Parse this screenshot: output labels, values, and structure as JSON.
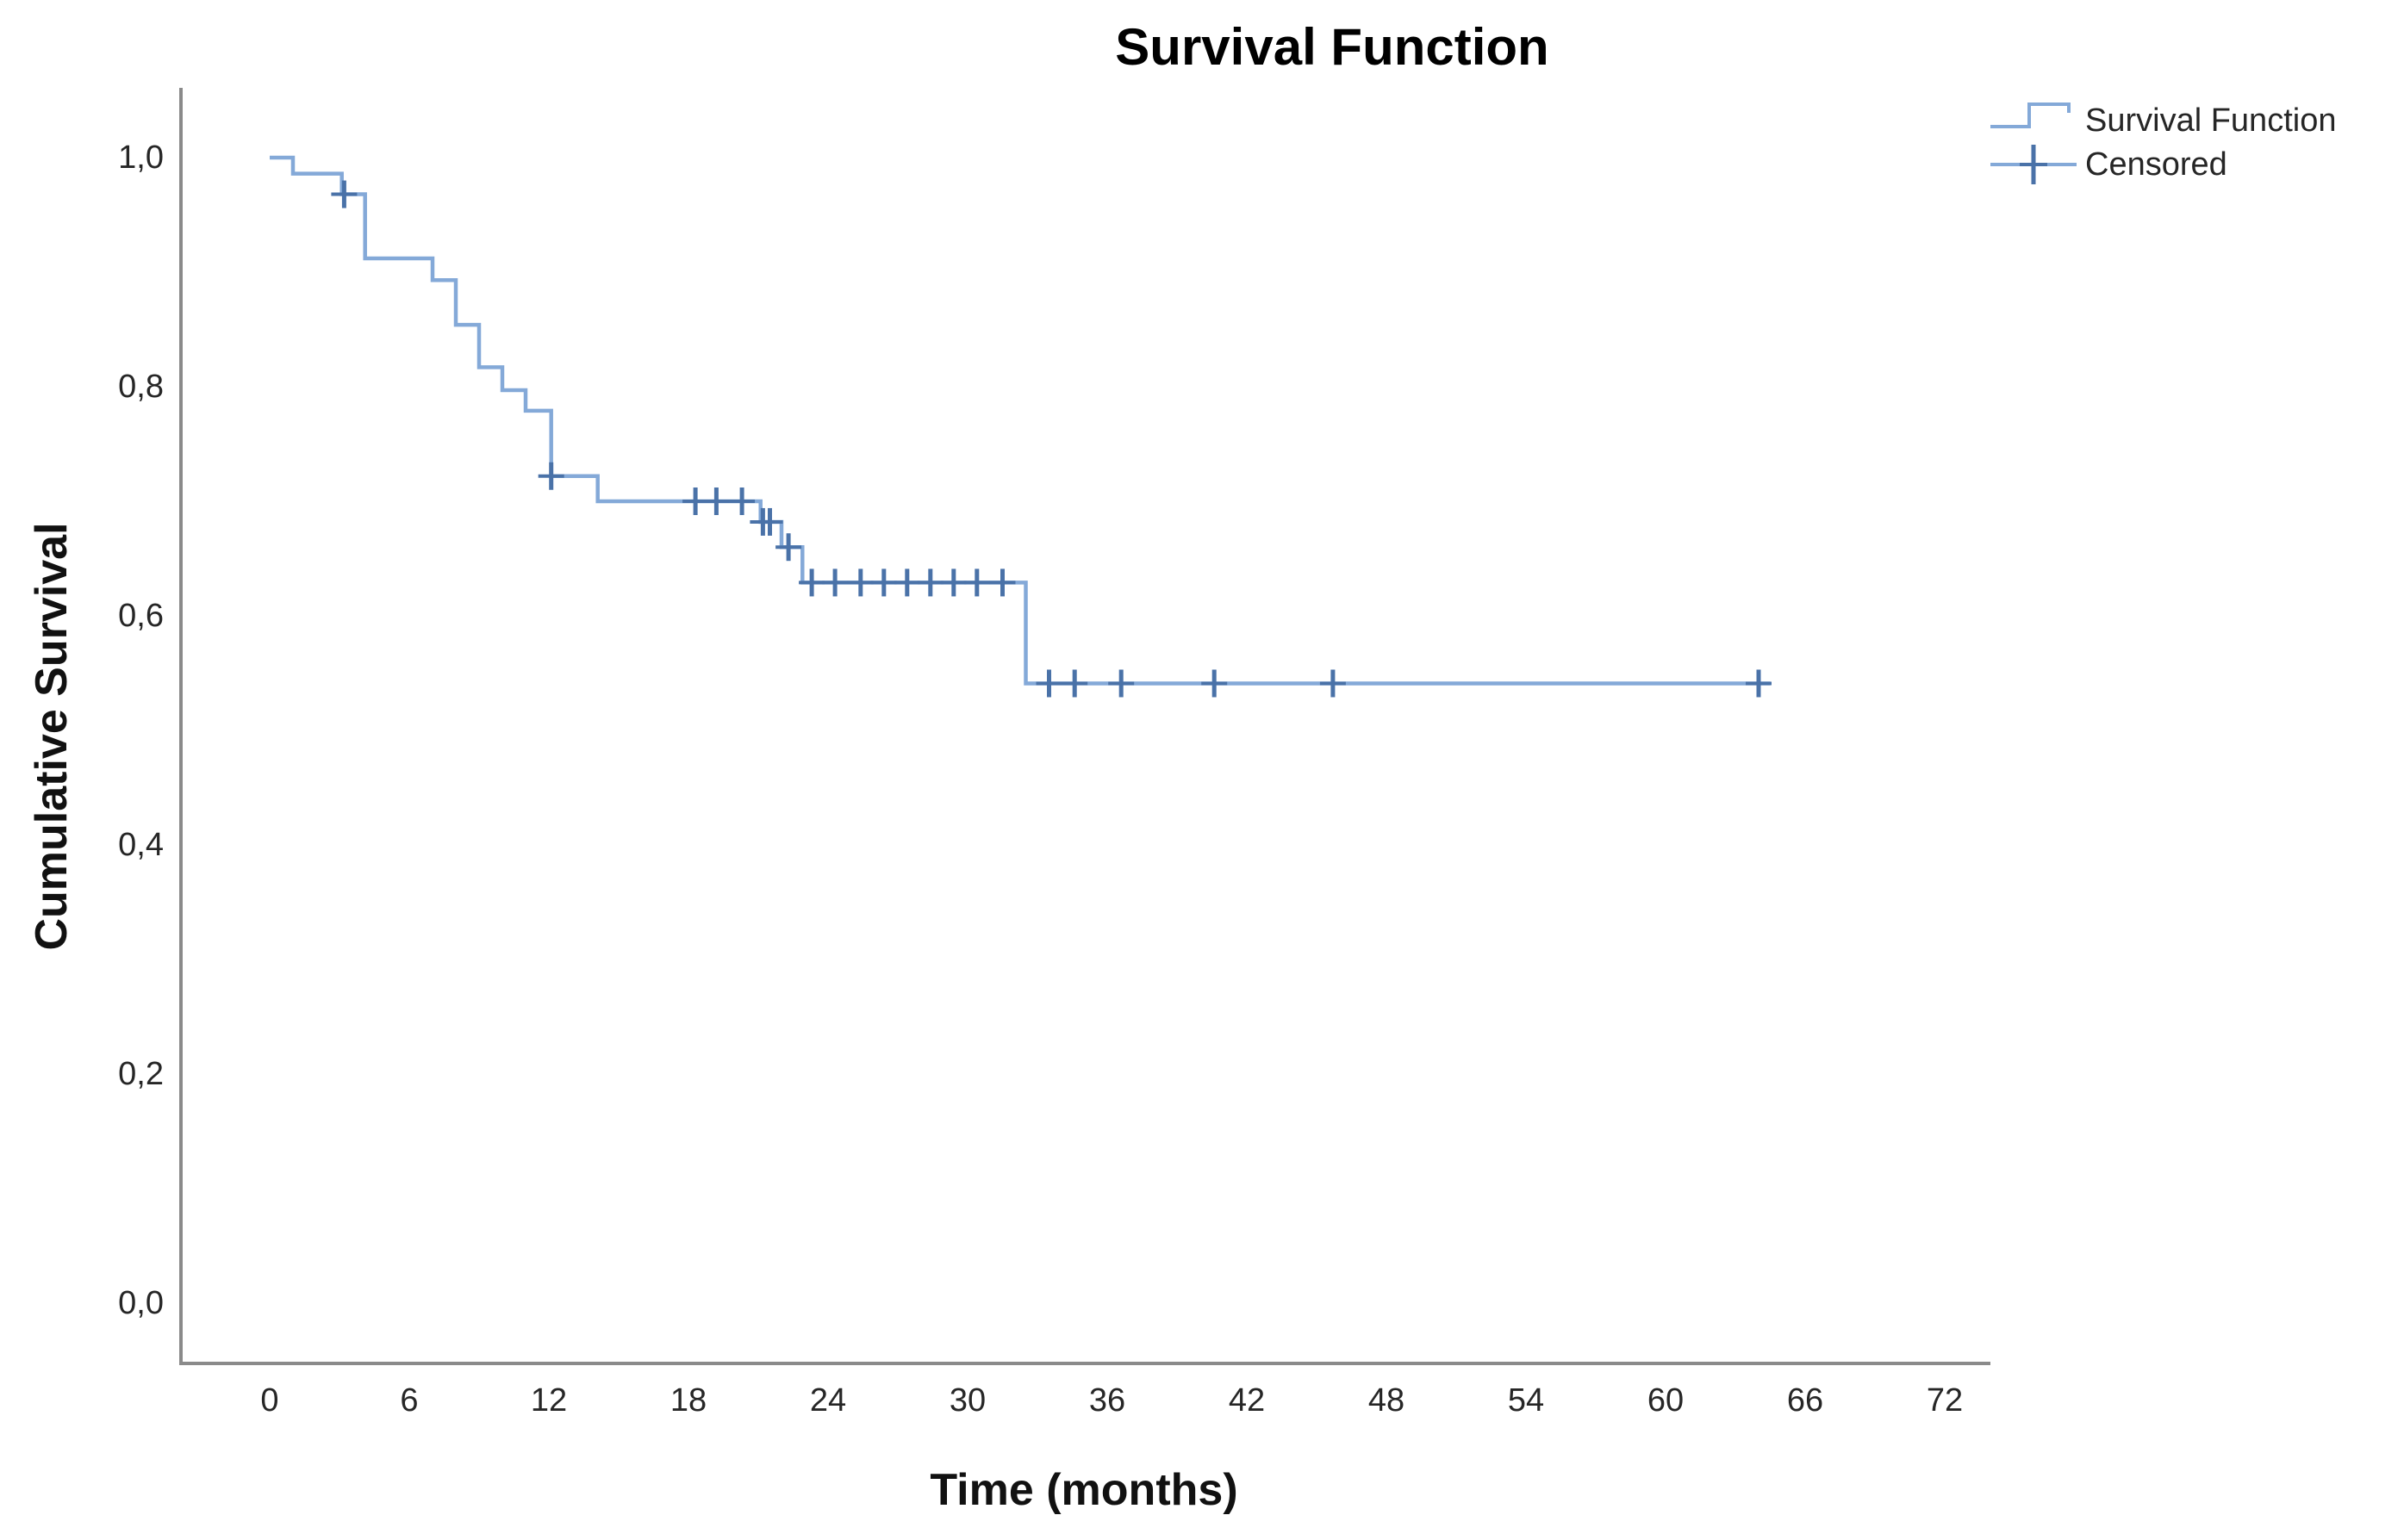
{
  "title": "Survival Function",
  "x_axis": {
    "label": "Time (months)",
    "ticks": [
      "0",
      "6",
      "12",
      "18",
      "24",
      "30",
      "36",
      "42",
      "48",
      "54",
      "60",
      "66",
      "72"
    ],
    "tick_values": [
      0,
      6,
      12,
      18,
      24,
      30,
      36,
      42,
      48,
      54,
      60,
      66,
      72
    ]
  },
  "y_axis": {
    "label": "Cumulative Survival",
    "ticks": [
      "1,0",
      "0,8",
      "0,6",
      "0,4",
      "0,2",
      "0,0"
    ],
    "tick_values": [
      1.0,
      0.8,
      0.6,
      0.4,
      0.2,
      0.0
    ]
  },
  "legend": {
    "items": [
      {
        "label": "Survival Function",
        "symbol": "step-line"
      },
      {
        "label": "Censored",
        "symbol": "plus-marker"
      }
    ]
  },
  "colors": {
    "line": "#84a9d8",
    "censor": "#4a72a8",
    "axis": "#8a8a8a",
    "text": "#262626",
    "title_text": "#000000",
    "background": "#ffffff"
  },
  "chart_data": {
    "type": "line",
    "subtype": "kaplan-meier-step-function",
    "title": "Survival Function",
    "xlabel": "Time (months)",
    "ylabel": "Cumulative Survival",
    "xlim": [
      0,
      72
    ],
    "ylim": [
      0.0,
      1.0
    ],
    "grid": false,
    "legend_position": "top-right",
    "decimal_separator": ",",
    "series": [
      {
        "name": "Survival Function",
        "steps": [
          [
            0.0,
            1.0
          ],
          [
            1.0,
            0.986
          ],
          [
            3.1,
            0.968
          ],
          [
            4.1,
            0.912
          ],
          [
            7.0,
            0.893
          ],
          [
            8.0,
            0.854
          ],
          [
            9.0,
            0.817
          ],
          [
            10.0,
            0.797
          ],
          [
            11.0,
            0.779
          ],
          [
            12.1,
            0.722
          ],
          [
            14.1,
            0.7
          ],
          [
            21.1,
            0.682
          ],
          [
            22.0,
            0.66
          ],
          [
            22.9,
            0.629
          ],
          [
            32.5,
            0.541
          ]
        ],
        "end_time": 64.5
      }
    ],
    "censored": [
      [
        3.2,
        0.968
      ],
      [
        12.1,
        0.722
      ],
      [
        18.3,
        0.7
      ],
      [
        19.2,
        0.7
      ],
      [
        20.3,
        0.7
      ],
      [
        21.2,
        0.682
      ],
      [
        21.5,
        0.682
      ],
      [
        22.3,
        0.66
      ],
      [
        23.3,
        0.629
      ],
      [
        24.3,
        0.629
      ],
      [
        25.4,
        0.629
      ],
      [
        26.4,
        0.629
      ],
      [
        27.4,
        0.629
      ],
      [
        28.4,
        0.629
      ],
      [
        29.4,
        0.629
      ],
      [
        30.4,
        0.629
      ],
      [
        31.5,
        0.629
      ],
      [
        33.5,
        0.541
      ],
      [
        34.6,
        0.541
      ],
      [
        36.6,
        0.541
      ],
      [
        40.6,
        0.541
      ],
      [
        45.7,
        0.541
      ],
      [
        64.0,
        0.541
      ]
    ]
  }
}
